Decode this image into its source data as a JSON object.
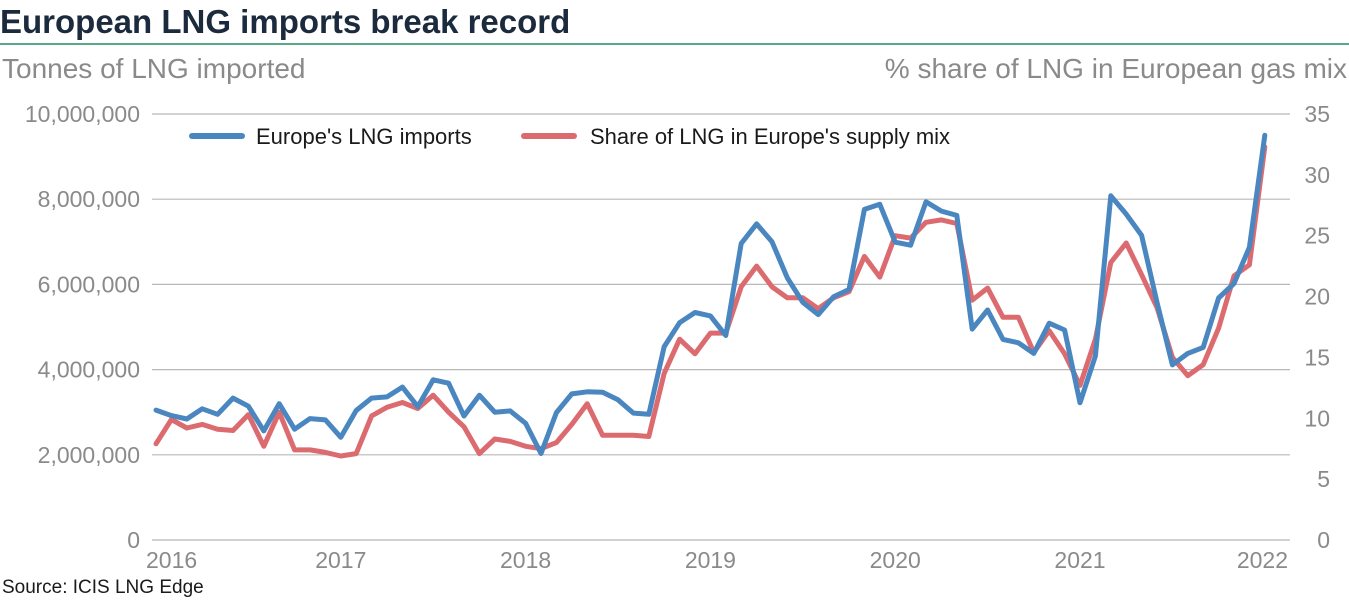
{
  "title": "European LNG imports break record",
  "source": "Source: ICIS LNG Edge",
  "colors": {
    "imports": "#4a86c0",
    "share": "#dc6b70",
    "rule": "#5aa88c",
    "grid": "#b8b8b8"
  },
  "chart_data": {
    "type": "line",
    "ylabel": "Tonnes of LNG imported",
    "y2label": "% share of LNG in European gas mix",
    "ylim": [
      0,
      10000000
    ],
    "y2lim": [
      0,
      35
    ],
    "yticks": [
      "0",
      "2,000,000",
      "4,000,000",
      "6,000,000",
      "8,000,000",
      "10,000,000"
    ],
    "y2ticks": [
      "0",
      "5",
      "10",
      "15",
      "20",
      "25",
      "30",
      "35"
    ],
    "xticks": [
      "2016",
      "2017",
      "2018",
      "2019",
      "2020",
      "2021",
      "2022"
    ],
    "x_start": "2016-01",
    "grid": true,
    "legend_position": "top",
    "series": [
      {
        "name": "Europe's LNG imports",
        "axis": "left",
        "values": [
          3050000,
          2920000,
          2840000,
          3080000,
          2950000,
          3330000,
          3140000,
          2560000,
          3200000,
          2600000,
          2850000,
          2820000,
          2410000,
          3040000,
          3330000,
          3360000,
          3590000,
          3130000,
          3760000,
          3680000,
          2910000,
          3400000,
          3000000,
          3030000,
          2740000,
          2030000,
          2990000,
          3430000,
          3480000,
          3470000,
          3290000,
          2980000,
          2950000,
          4540000,
          5100000,
          5340000,
          5260000,
          4800000,
          6960000,
          7420000,
          7000000,
          6150000,
          5580000,
          5290000,
          5710000,
          5880000,
          7760000,
          7880000,
          6990000,
          6920000,
          7940000,
          7720000,
          7620000,
          4950000,
          5400000,
          4710000,
          4630000,
          4380000,
          5090000,
          4930000,
          3220000,
          4320000,
          8080000,
          7650000,
          7150000,
          5580000,
          4110000,
          4380000,
          4520000,
          5680000,
          6020000,
          6870000,
          9500000
        ]
      },
      {
        "name": "Share of LNG in Europe's supply mix",
        "axis": "right",
        "values": [
          7.9,
          9.9,
          9.2,
          9.5,
          9.1,
          9.0,
          10.3,
          7.7,
          10.5,
          7.4,
          7.4,
          7.2,
          6.9,
          7.1,
          10.2,
          10.9,
          11.3,
          10.8,
          11.9,
          10.5,
          9.3,
          7.1,
          8.3,
          8.1,
          7.7,
          7.5,
          8.0,
          9.5,
          11.2,
          8.6,
          8.6,
          8.6,
          8.5,
          13.7,
          16.5,
          15.3,
          17.0,
          17.0,
          20.8,
          22.5,
          20.8,
          19.9,
          19.9,
          19.0,
          19.9,
          20.4,
          23.3,
          21.6,
          25.0,
          24.8,
          26.1,
          26.3,
          26.0,
          19.7,
          20.7,
          18.3,
          18.3,
          15.4,
          17.2,
          15.3,
          12.7,
          16.5,
          22.8,
          24.4,
          21.8,
          19.1,
          15.0,
          13.5,
          14.4,
          17.4,
          21.7,
          22.6,
          32.3
        ]
      }
    ]
  }
}
